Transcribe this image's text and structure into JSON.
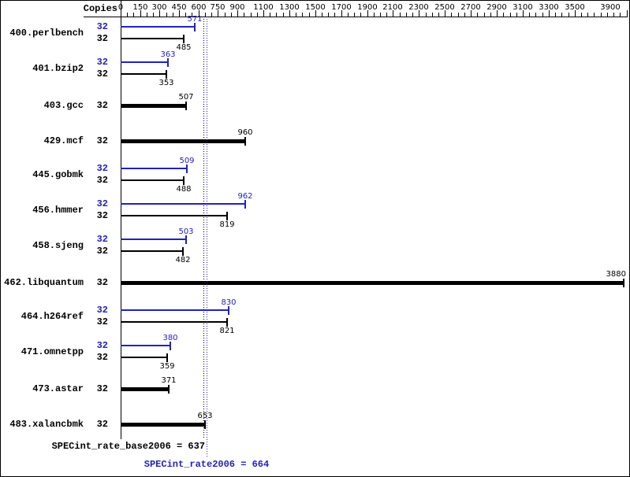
{
  "chart_data": {
    "type": "bar",
    "orientation": "horizontal",
    "copies_header": "Copies",
    "colors": {
      "peak": "#2222bb",
      "base": "#000000",
      "background": "#ffffff"
    },
    "x_axis": {
      "tick_values": [
        0,
        150,
        300,
        450,
        600,
        750,
        900,
        1100,
        1300,
        1500,
        1700,
        1900,
        2100,
        2300,
        2500,
        2700,
        2900,
        3100,
        3300,
        3500,
        3900
      ],
      "tick_labels": [
        "0",
        "150",
        "300",
        "450",
        "600",
        "750",
        "900",
        "1100",
        "1300",
        "1500",
        "1700",
        "1900",
        "2100",
        "2300",
        "2500",
        "2700",
        "2900",
        "3100",
        "3300",
        "3500",
        "3900"
      ],
      "minor_tick_interval": 50,
      "max_value": 3900
    },
    "benchmarks": [
      {
        "name": "400.perlbench",
        "copies": "32",
        "peak": 571,
        "base": 485
      },
      {
        "name": "401.bzip2",
        "copies": "32",
        "peak": 363,
        "base": 353
      },
      {
        "name": "403.gcc",
        "copies": "32",
        "base": 507
      },
      {
        "name": "429.mcf",
        "copies": "32",
        "base": 960
      },
      {
        "name": "445.gobmk",
        "copies": "32",
        "peak": 509,
        "base": 488
      },
      {
        "name": "456.hmmer",
        "copies": "32",
        "peak": 962,
        "base": 819
      },
      {
        "name": "458.sjeng",
        "copies": "32",
        "peak": 503,
        "base": 482
      },
      {
        "name": "462.libquantum",
        "copies": "32",
        "base": 3880
      },
      {
        "name": "464.h264ref",
        "copies": "32",
        "peak": 830,
        "base": 821
      },
      {
        "name": "471.omnetpp",
        "copies": "32",
        "peak": 380,
        "base": 359
      },
      {
        "name": "473.astar",
        "copies": "32",
        "base": 371
      },
      {
        "name": "483.xalancbmk",
        "copies": "32",
        "base": 653
      }
    ],
    "reference_lines": [
      {
        "name": "base",
        "label": "SPECint_rate_base2006 = 637",
        "value": 637,
        "color": "black",
        "style": "dotted"
      },
      {
        "name": "peak",
        "label": "SPECint_rate2006 = 664",
        "value": 664,
        "color": "blue",
        "style": "dotted"
      }
    ]
  }
}
